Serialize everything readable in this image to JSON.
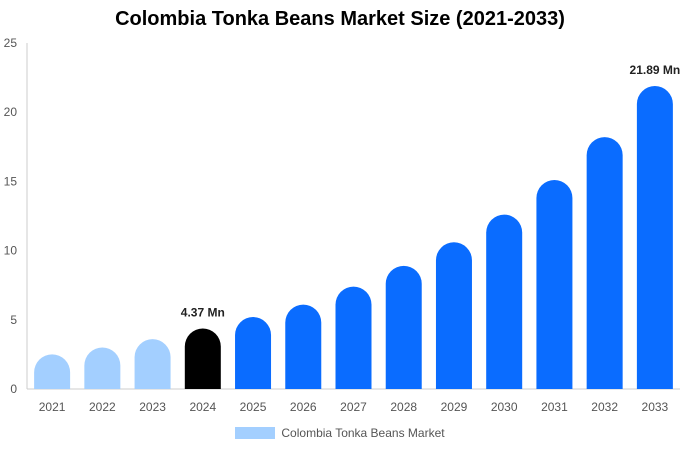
{
  "chart_data": {
    "type": "bar",
    "title": "Colombia Tonka Beans Market Size (2021-2033)",
    "xlabel": "",
    "ylabel": "",
    "categories": [
      "2021",
      "2022",
      "2023",
      "2024",
      "2025",
      "2026",
      "2027",
      "2028",
      "2029",
      "2030",
      "2031",
      "2032",
      "2033"
    ],
    "series": [
      {
        "name": "Colombia Tonka Beans Market",
        "values": [
          2.5,
          3.0,
          3.6,
          4.37,
          5.2,
          6.1,
          7.4,
          8.9,
          10.6,
          12.6,
          15.1,
          18.2,
          21.89
        ]
      }
    ],
    "ylim": [
      0,
      25
    ],
    "yticks": [
      0,
      5,
      10,
      15,
      20,
      25
    ],
    "data_labels": [
      {
        "category": "2024",
        "text": "4.37 Mn"
      },
      {
        "category": "2033",
        "text": "21.89 Mn"
      }
    ],
    "colors": {
      "historical": "#a3cfff",
      "current": "#000000",
      "forecast": "#0a6cff",
      "gridline": "#e6e6e6",
      "axis": "#cccccc"
    },
    "bar_color_groups": [
      "historical",
      "historical",
      "historical",
      "current",
      "forecast",
      "forecast",
      "forecast",
      "forecast",
      "forecast",
      "forecast",
      "forecast",
      "forecast",
      "forecast"
    ],
    "grid": false,
    "legend_position": "bottom"
  }
}
